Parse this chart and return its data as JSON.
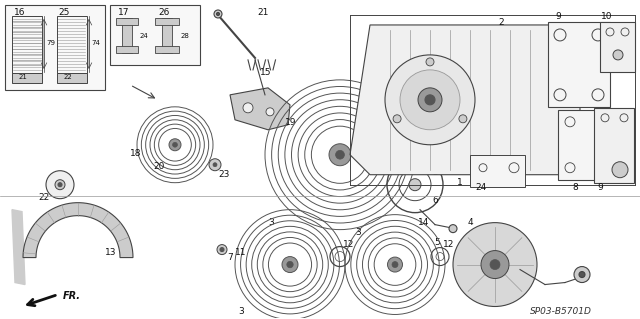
{
  "background_color": "#ffffff",
  "diagram_code": "SP03-B5701D",
  "fr_label": "FR.",
  "line_color": "#444444",
  "text_color": "#111111",
  "font_size_label": 6.5,
  "font_size_code": 6.0,
  "gray_light": "#cccccc",
  "gray_mid": "#999999",
  "gray_dark": "#555555"
}
